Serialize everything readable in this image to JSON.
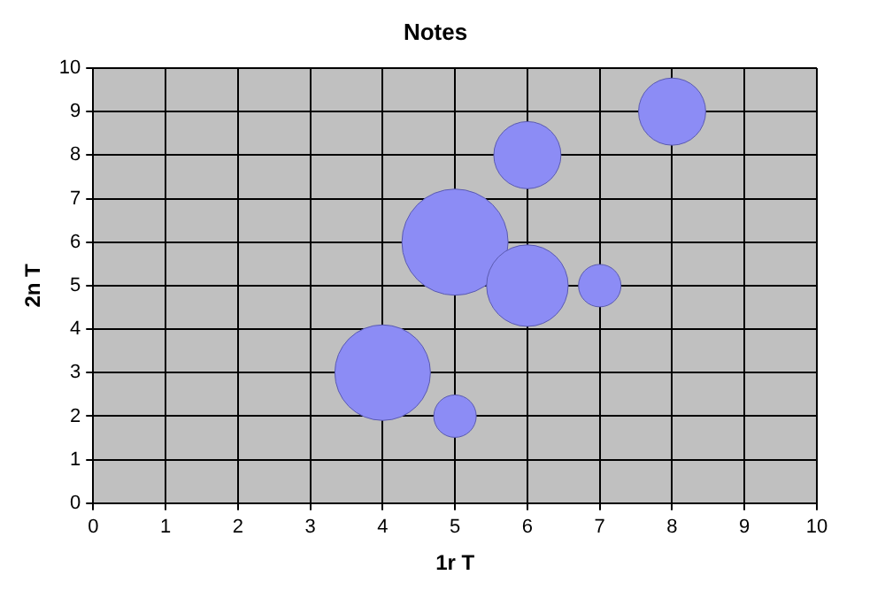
{
  "chart_data": {
    "type": "bubble",
    "title": "Notes",
    "xlabel": "1r T",
    "ylabel": "2n T",
    "x": [
      4,
      5,
      5,
      6,
      6,
      7,
      8
    ],
    "values": [
      3,
      2,
      6,
      5,
      8,
      5,
      9
    ],
    "sizes": [
      0.81,
      0.16,
      1,
      0.59,
      0.4,
      0.16,
      0.4
    ],
    "color": "#8c8cf5",
    "xlim": [
      0,
      10
    ],
    "xticks": [
      0,
      1,
      2,
      3,
      4,
      5,
      6,
      7,
      8,
      9,
      10
    ],
    "ylim": [
      0,
      10
    ],
    "yticks": [
      0,
      1,
      2,
      3,
      4,
      5,
      6,
      7,
      8,
      9,
      10
    ],
    "grid": true,
    "legend": false
  }
}
